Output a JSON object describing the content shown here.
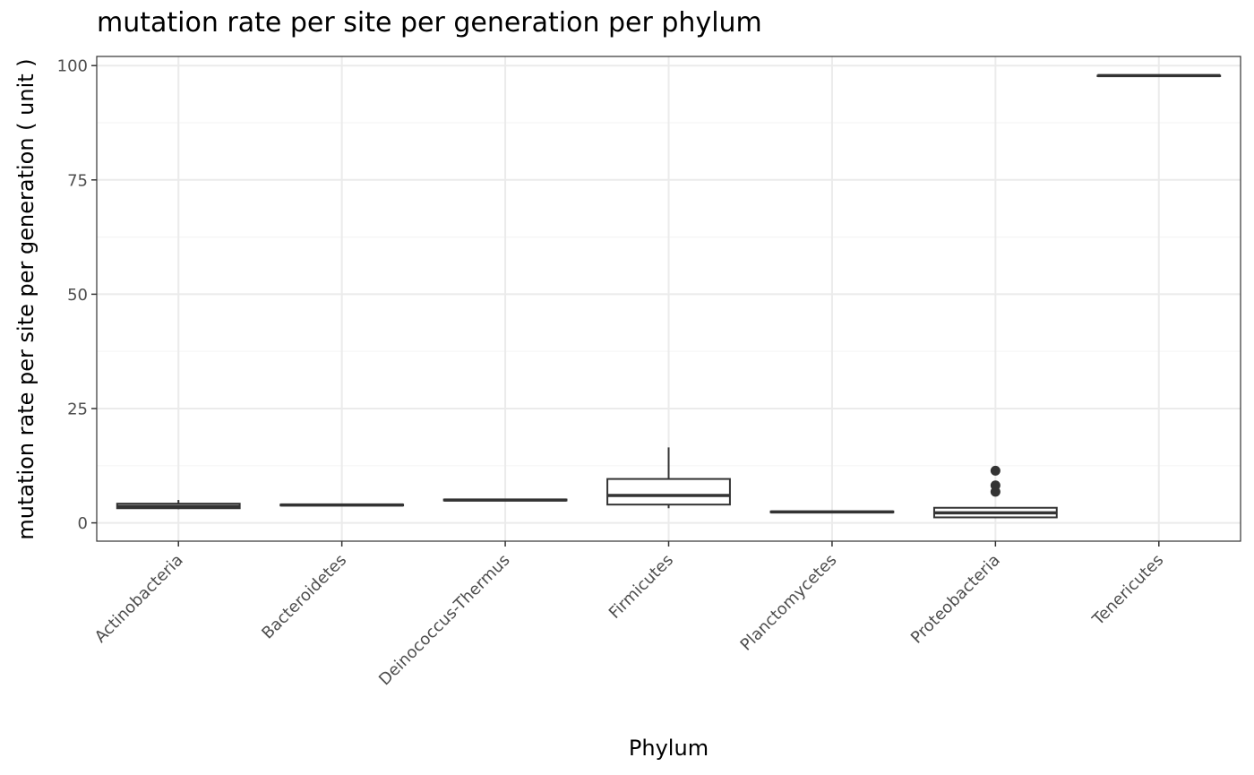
{
  "chart_data": {
    "type": "box",
    "title": "mutation rate per site per generation per phylum",
    "xlabel": "Phylum",
    "ylabel": "mutation rate per site per generation ( unit )",
    "ylim": [
      -4,
      102
    ],
    "yticks": [
      0,
      25,
      50,
      75,
      100
    ],
    "grid": true,
    "categories": [
      "Actinobacteria",
      "Bacteroidetes",
      "Deinococcus-Thermus",
      "Firmicutes",
      "Planctomycetes",
      "Proteobacteria",
      "Tenericutes"
    ],
    "boxes": [
      {
        "category": "Actinobacteria",
        "min": 3.0,
        "q1": 3.2,
        "median": 3.6,
        "q3": 4.2,
        "max": 5.0,
        "outliers": []
      },
      {
        "category": "Bacteroidetes",
        "min": 3.8,
        "q1": 3.8,
        "median": 3.9,
        "q3": 4.0,
        "max": 4.0,
        "outliers": []
      },
      {
        "category": "Deinococcus-Thermus",
        "min": 4.9,
        "q1": 4.9,
        "median": 5.0,
        "q3": 5.1,
        "max": 5.1,
        "outliers": []
      },
      {
        "category": "Firmicutes",
        "min": 3.2,
        "q1": 4.0,
        "median": 6.0,
        "q3": 9.6,
        "max": 16.5,
        "outliers": []
      },
      {
        "category": "Planctomycetes",
        "min": 2.3,
        "q1": 2.3,
        "median": 2.4,
        "q3": 2.5,
        "max": 2.5,
        "outliers": []
      },
      {
        "category": "Proteobacteria",
        "min": 1.0,
        "q1": 1.2,
        "median": 2.2,
        "q3": 3.3,
        "max": 3.3,
        "outliers": [
          6.8,
          8.2,
          11.4
        ]
      },
      {
        "category": "Tenericutes",
        "min": 97.8,
        "q1": 97.8,
        "median": 97.8,
        "q3": 97.8,
        "max": 97.8,
        "outliers": []
      }
    ],
    "colors": {
      "box_stroke": "#333333",
      "box_fill": "#ffffff",
      "grid_major": "#ebebeb",
      "grid_minor": "#f5f5f5",
      "panel_border": "#333333"
    }
  }
}
